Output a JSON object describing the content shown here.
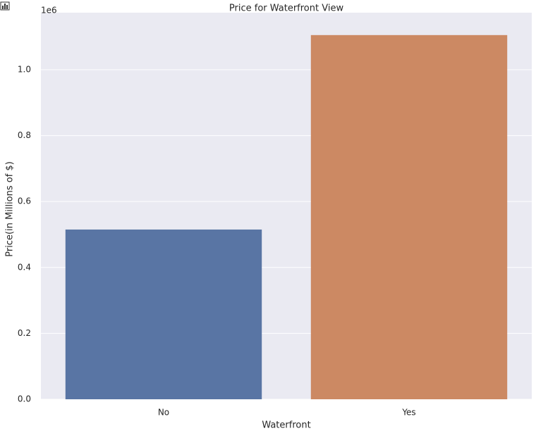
{
  "chart_data": {
    "type": "bar",
    "title": "Price for Waterfront View",
    "x_label": "Waterfront",
    "y_label": "Price(in Millions of $)",
    "offset_text": "1e6",
    "categories": [
      "No",
      "Yes"
    ],
    "values": [
      515000,
      1105000
    ],
    "colors": [
      "#5975a4",
      "#cc8963"
    ],
    "ylim": [
      0,
      1173000
    ],
    "yticks": [
      {
        "value": 0,
        "label": "0.0"
      },
      {
        "value": 200000,
        "label": "0.2"
      },
      {
        "value": 400000,
        "label": "0.4"
      },
      {
        "value": 600000,
        "label": "0.6"
      },
      {
        "value": 800000,
        "label": "0.8"
      },
      {
        "value": 1000000,
        "label": "1.0"
      }
    ],
    "grid": true
  }
}
